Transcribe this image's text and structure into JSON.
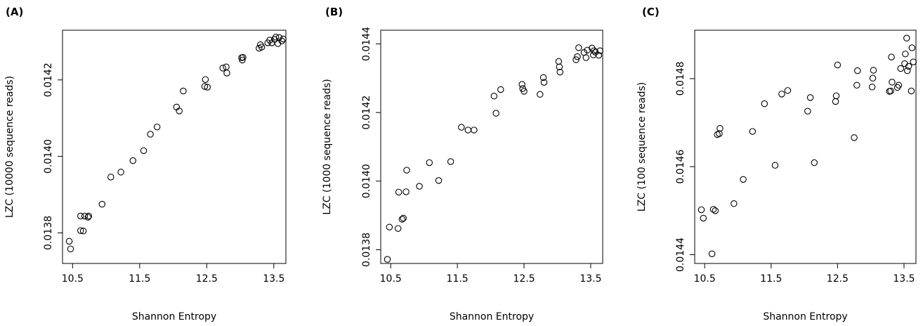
{
  "chart_data": [
    {
      "type": "scatter",
      "panel_label": "(A)",
      "xlabel": "Shannon Entropy",
      "ylabel": "LZC (10000 sequence reads)",
      "xlim": [
        10.35,
        13.68
      ],
      "ylim": [
        0.01372,
        0.01433
      ],
      "x_ticks": [
        10.5,
        11.5,
        12.5,
        13.5
      ],
      "x_tick_labels": [
        "10.5",
        "11.5",
        "12.5",
        "13.5"
      ],
      "y_ticks": [
        0.0138,
        0.014,
        0.0142
      ],
      "y_tick_labels": [
        "0.0138",
        "0.0140",
        "0.0142"
      ],
      "marker": "open-circle",
      "points": [
        [
          10.45,
          0.013778
        ],
        [
          10.47,
          0.013758
        ],
        [
          10.62,
          0.013806
        ],
        [
          10.66,
          0.013805
        ],
        [
          10.62,
          0.013844
        ],
        [
          10.68,
          0.013844
        ],
        [
          10.73,
          0.013841
        ],
        [
          10.74,
          0.013844
        ],
        [
          10.94,
          0.013875
        ],
        [
          11.07,
          0.013946
        ],
        [
          11.22,
          0.013959
        ],
        [
          11.4,
          0.013989
        ],
        [
          11.56,
          0.014015
        ],
        [
          11.66,
          0.014058
        ],
        [
          11.76,
          0.014077
        ],
        [
          12.05,
          0.014129
        ],
        [
          12.09,
          0.014119
        ],
        [
          12.15,
          0.014171
        ],
        [
          12.47,
          0.014183
        ],
        [
          12.48,
          0.014201
        ],
        [
          12.51,
          0.014181
        ],
        [
          12.74,
          0.014231
        ],
        [
          12.79,
          0.014234
        ],
        [
          12.8,
          0.014218
        ],
        [
          13.02,
          0.014258
        ],
        [
          13.03,
          0.014252
        ],
        [
          13.04,
          0.014259
        ],
        [
          13.28,
          0.014283
        ],
        [
          13.3,
          0.014292
        ],
        [
          13.32,
          0.014286
        ],
        [
          13.41,
          0.014297
        ],
        [
          13.44,
          0.014304
        ],
        [
          13.47,
          0.014297
        ],
        [
          13.51,
          0.014306
        ],
        [
          13.53,
          0.014312
        ],
        [
          13.56,
          0.014295
        ],
        [
          13.58,
          0.014311
        ],
        [
          13.62,
          0.014302
        ],
        [
          13.64,
          0.014307
        ]
      ]
    },
    {
      "type": "scatter",
      "panel_label": "(B)",
      "xlabel": "Shannon Entropy",
      "ylabel": "LZC (1000 sequence reads)",
      "xlim": [
        10.35,
        13.68
      ],
      "ylim": [
        0.01376,
        0.01444
      ],
      "x_ticks": [
        10.5,
        11.5,
        12.5,
        13.5
      ],
      "x_tick_labels": [
        "10.5",
        "11.5",
        "12.5",
        "13.5"
      ],
      "y_ticks": [
        0.0138,
        0.014,
        0.0142,
        0.0144
      ],
      "y_tick_labels": [
        "0.0138",
        "0.0140",
        "0.0142",
        "0.0144"
      ],
      "marker": "open-circle",
      "points": [
        [
          10.45,
          0.013772
        ],
        [
          10.48,
          0.013866
        ],
        [
          10.61,
          0.013862
        ],
        [
          10.62,
          0.013968
        ],
        [
          10.67,
          0.013889
        ],
        [
          10.69,
          0.013892
        ],
        [
          10.73,
          0.013969
        ],
        [
          10.74,
          0.014032
        ],
        [
          10.93,
          0.013985
        ],
        [
          11.08,
          0.014054
        ],
        [
          11.22,
          0.014002
        ],
        [
          11.4,
          0.014057
        ],
        [
          11.56,
          0.014157
        ],
        [
          11.66,
          0.014149
        ],
        [
          11.75,
          0.014149
        ],
        [
          12.05,
          0.014248
        ],
        [
          12.08,
          0.014198
        ],
        [
          12.15,
          0.014267
        ],
        [
          12.47,
          0.014282
        ],
        [
          12.48,
          0.01427
        ],
        [
          12.5,
          0.014262
        ],
        [
          12.74,
          0.014253
        ],
        [
          12.79,
          0.014302
        ],
        [
          12.8,
          0.014288
        ],
        [
          13.02,
          0.014349
        ],
        [
          13.03,
          0.014333
        ],
        [
          13.04,
          0.014318
        ],
        [
          13.28,
          0.014354
        ],
        [
          13.3,
          0.014363
        ],
        [
          13.32,
          0.014389
        ],
        [
          13.4,
          0.014375
        ],
        [
          13.43,
          0.01436
        ],
        [
          13.45,
          0.014382
        ],
        [
          13.52,
          0.014388
        ],
        [
          13.54,
          0.014368
        ],
        [
          13.55,
          0.01438
        ],
        [
          13.57,
          0.014376
        ],
        [
          13.62,
          0.014367
        ],
        [
          13.64,
          0.01438
        ]
      ]
    },
    {
      "type": "scatter",
      "panel_label": "(C)",
      "xlabel": "Shannon Entropy",
      "ylabel": "LZC (100 sequence reads)",
      "xlim": [
        10.35,
        13.68
      ],
      "ylim": [
        0.01438,
        0.01491
      ],
      "x_ticks": [
        10.5,
        11.5,
        12.5,
        13.5
      ],
      "x_tick_labels": [
        "10.5",
        "11.5",
        "12.5",
        "13.5"
      ],
      "y_ticks": [
        0.0144,
        0.0146,
        0.0148
      ],
      "y_tick_labels": [
        "0.0144",
        "0.0146",
        "0.0148"
      ],
      "marker": "open-circle",
      "points": [
        [
          10.45,
          0.014502
        ],
        [
          10.48,
          0.014483
        ],
        [
          10.61,
          0.014402
        ],
        [
          10.63,
          0.014503
        ],
        [
          10.66,
          0.0145
        ],
        [
          10.69,
          0.014673
        ],
        [
          10.72,
          0.014675
        ],
        [
          10.73,
          0.014687
        ],
        [
          10.94,
          0.014516
        ],
        [
          11.08,
          0.014571
        ],
        [
          11.22,
          0.01468
        ],
        [
          11.4,
          0.014743
        ],
        [
          11.56,
          0.014603
        ],
        [
          11.66,
          0.014765
        ],
        [
          11.75,
          0.014773
        ],
        [
          12.05,
          0.014726
        ],
        [
          12.09,
          0.014757
        ],
        [
          12.15,
          0.014609
        ],
        [
          12.47,
          0.014748
        ],
        [
          12.48,
          0.014761
        ],
        [
          12.5,
          0.014831
        ],
        [
          12.75,
          0.014666
        ],
        [
          12.79,
          0.014785
        ],
        [
          12.8,
          0.014818
        ],
        [
          13.02,
          0.014781
        ],
        [
          13.03,
          0.014801
        ],
        [
          13.04,
          0.014819
        ],
        [
          13.28,
          0.014771
        ],
        [
          13.3,
          0.014772
        ],
        [
          13.31,
          0.014849
        ],
        [
          13.32,
          0.014792
        ],
        [
          13.4,
          0.01478
        ],
        [
          13.42,
          0.014785
        ],
        [
          13.45,
          0.014823
        ],
        [
          13.51,
          0.014834
        ],
        [
          13.52,
          0.014856
        ],
        [
          13.54,
          0.014892
        ],
        [
          13.55,
          0.014818
        ],
        [
          13.57,
          0.014828
        ],
        [
          13.61,
          0.014772
        ],
        [
          13.62,
          0.01487
        ],
        [
          13.64,
          0.014838
        ]
      ]
    }
  ]
}
